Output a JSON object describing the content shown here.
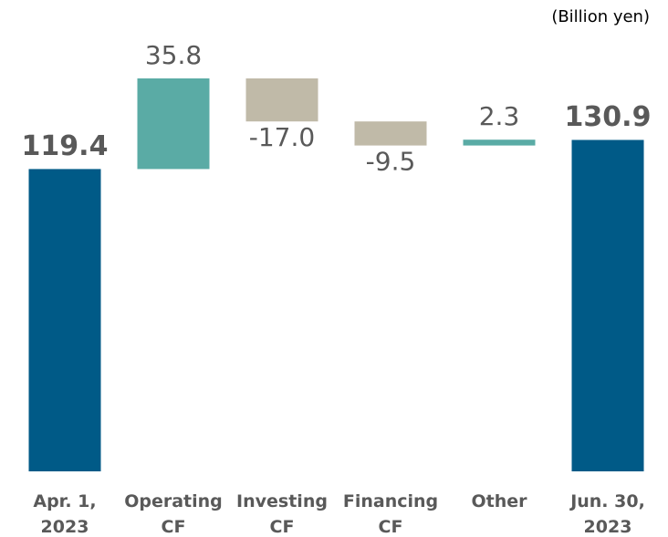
{
  "chart_data": {
    "type": "waterfall",
    "unit_label": "(Billion yen)",
    "categories": [
      "Apr. 1,\n2023",
      "Operating\nCF",
      "Investing\nCF",
      "Financing\nCF",
      "Other",
      "Jun. 30,\n2023"
    ],
    "values": [
      119.4,
      35.8,
      -17.0,
      -9.5,
      2.3,
      130.9
    ],
    "value_labels": [
      "119.4",
      "35.8",
      "-17.0",
      "-9.5",
      "2.3",
      "130.9"
    ],
    "colors": [
      "#005a87",
      "#5aaba5",
      "#c0baa8",
      "#c0baa8",
      "#5aaba5",
      "#005a87"
    ]
  }
}
